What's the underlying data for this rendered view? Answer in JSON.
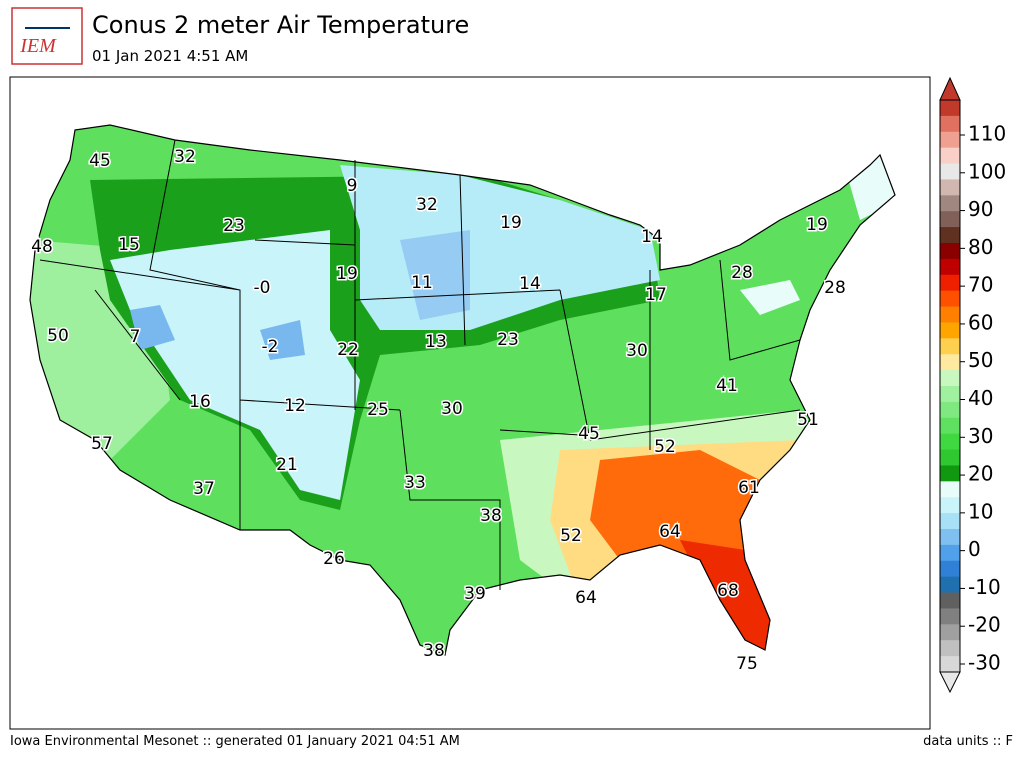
{
  "header": {
    "logo_text": "IEM",
    "title": "Conus 2 meter Air Temperature",
    "subtitle": "01 Jan 2021 4:51 AM"
  },
  "map": {
    "labels": [
      "45",
      "32",
      "9",
      "32",
      "19",
      "14",
      "48",
      "15",
      "23",
      "-0",
      "19",
      "11",
      "14",
      "17",
      "28",
      "19",
      "28",
      "50",
      "7",
      "-2",
      "22",
      "13",
      "23",
      "30",
      "41",
      "16",
      "12",
      "25",
      "30",
      "45",
      "52",
      "51",
      "57",
      "21",
      "37",
      "33",
      "61",
      "38",
      "52",
      "64",
      "26",
      "39",
      "64",
      "68",
      "38",
      "75"
    ]
  },
  "colorbar": {
    "ticks": [
      "110",
      "100",
      "90",
      "80",
      "70",
      "60",
      "50",
      "40",
      "30",
      "20",
      "10",
      "0",
      "-10",
      "-20",
      "-30"
    ]
  },
  "footer": {
    "left": "Iowa Environmental Mesonet :: generated 01 January 2021 04:51 AM",
    "right": "data units :: F"
  }
}
